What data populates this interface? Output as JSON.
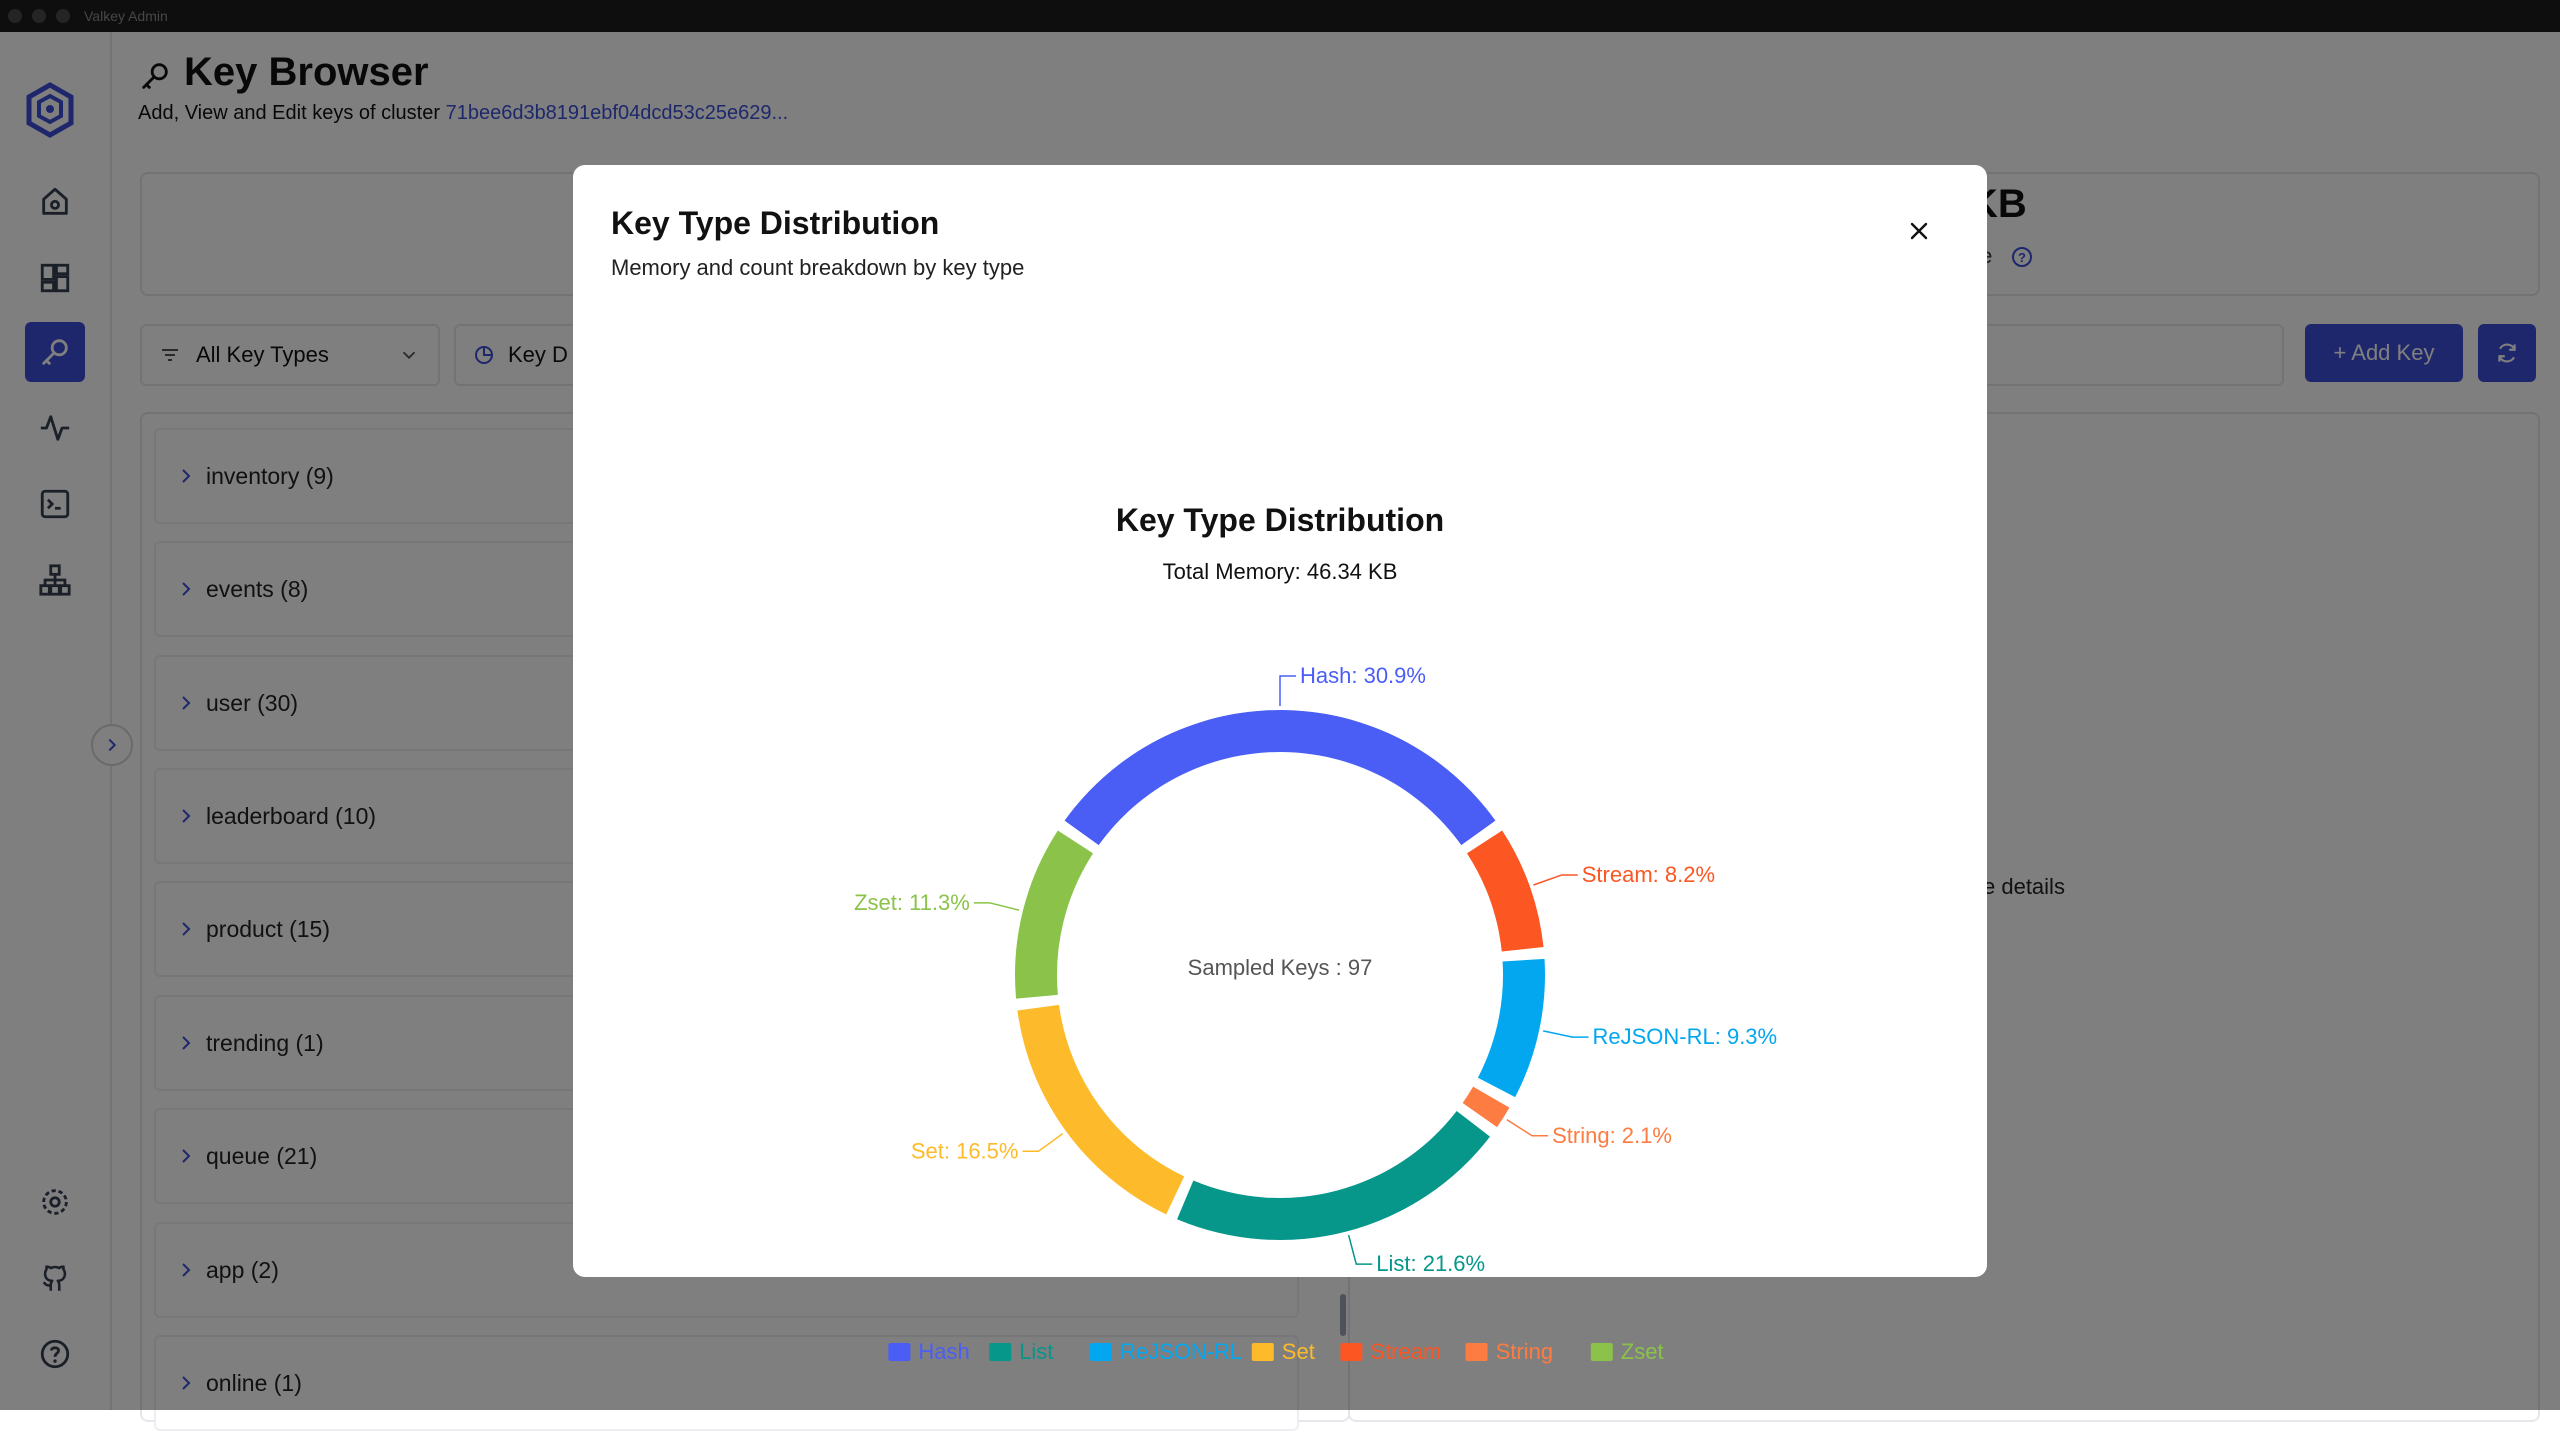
{
  "window": {
    "title": "Valkey Admin"
  },
  "sidebar": {
    "items": [
      {
        "name": "dashboard-icon"
      },
      {
        "name": "grid-icon"
      },
      {
        "name": "key-icon",
        "active": true
      },
      {
        "name": "activity-icon"
      },
      {
        "name": "terminal-icon"
      },
      {
        "name": "cluster-icon"
      },
      {
        "name": "settings-icon"
      },
      {
        "name": "github-icon"
      },
      {
        "name": "help-icon"
      }
    ],
    "accent": "#3d4ed8"
  },
  "header": {
    "title": "Key Browser",
    "subtitle_prefix": "Add, View and Edit keys of cluster ",
    "cluster_id": "71bee6d3b8191ebf04dcd53c25e629..."
  },
  "stats": {
    "value": "KB",
    "label": "ge"
  },
  "toolbar": {
    "key_types_filter": "All Key Types",
    "distribution_button": "Key D",
    "add_key_label": "+ Add Key"
  },
  "tree": {
    "items": [
      {
        "label": "inventory  (9)"
      },
      {
        "label": "events  (8)"
      },
      {
        "label": "user  (30)"
      },
      {
        "label": "leaderboard  (10)"
      },
      {
        "label": "product  (15)"
      },
      {
        "label": "trending  (1)"
      },
      {
        "label": "queue  (21)"
      },
      {
        "label": "app  (2)"
      },
      {
        "label": "online  (1)"
      }
    ]
  },
  "details": {
    "hint": "e details"
  },
  "modal": {
    "title": "Key Type Distribution",
    "subtitle": "Memory and count breakdown by key type"
  },
  "chart_data": {
    "type": "pie",
    "variant": "donut",
    "title": "Key Type Distribution",
    "subtitle": "Total Memory: 46.34 KB",
    "center_label": "Sampled Keys : 97",
    "slices": [
      {
        "name": "Hash",
        "percent": 30.9,
        "label": "Hash: 30.9%",
        "color": "#4a5ef6"
      },
      {
        "name": "Stream",
        "percent": 8.2,
        "label": "Stream: 8.2%",
        "color": "#fc5622"
      },
      {
        "name": "ReJSON-RL",
        "percent": 9.3,
        "label": "ReJSON-RL: 9.3%",
        "color": "#02a7f0"
      },
      {
        "name": "String",
        "percent": 2.1,
        "label": "String: 2.1%",
        "color": "#fd7c42"
      },
      {
        "name": "List",
        "percent": 21.6,
        "label": "List: 21.6%",
        "color": "#06968a"
      },
      {
        "name": "Set",
        "percent": 16.5,
        "label": "Set: 16.5%",
        "color": "#fdbb2b"
      },
      {
        "name": "Zset",
        "percent": 11.3,
        "label": "Zset: 11.3%",
        "color": "#8bc34a"
      }
    ],
    "legend": [
      "Hash",
      "List",
      "ReJSON-RL",
      "Set",
      "Stream",
      "String",
      "Zset"
    ],
    "legend_position": "bottom"
  }
}
